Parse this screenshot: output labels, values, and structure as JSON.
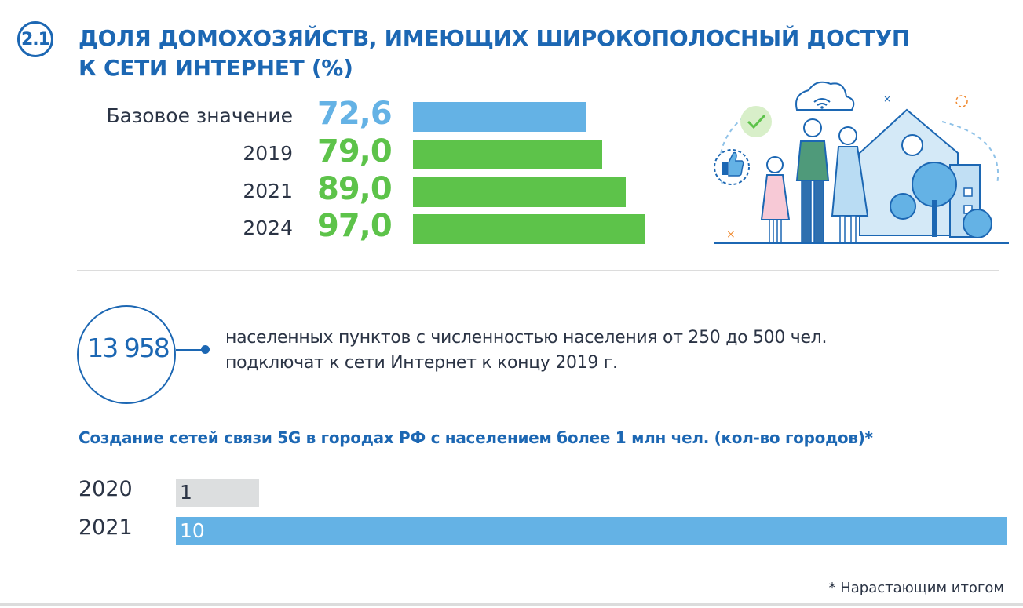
{
  "header": {
    "badge": "2.1",
    "title_line1": "ДОЛЯ ДОМОХОЗЯЙСТВ, ИМЕЮЩИХ ШИРОКОПОЛОСНЫЙ ДОСТУП",
    "title_line2": "К СЕТИ ИНТЕРНЕТ (%)"
  },
  "colors": {
    "brand_blue": "#1c67b3",
    "base_bar": "#64b2e5",
    "target_bar": "#5dc34a",
    "gray_bar": "#dcdedf"
  },
  "chart_data": [
    {
      "type": "bar",
      "orientation": "horizontal",
      "title": "ДОЛЯ ДОМОХОЗЯЙСТВ, ИМЕЮЩИХ ШИРОКОПОЛОСНЫЙ ДОСТУП К СЕТИ ИНТЕРНЕТ (%)",
      "categories": [
        "Базовое значение",
        "2019",
        "2021",
        "2024"
      ],
      "values": [
        72.6,
        79.0,
        89.0,
        97.0
      ],
      "value_labels": [
        "72,6",
        "79,0",
        "89,0",
        "97,0"
      ],
      "xlim": [
        0,
        100
      ],
      "grid": false
    },
    {
      "type": "bar",
      "orientation": "horizontal",
      "title": "Создание сетей связи 5G в городах РФ с населением более 1 млн чел. (кол-во городов)*",
      "categories": [
        "2020",
        "2021"
      ],
      "values": [
        1,
        10
      ],
      "value_labels": [
        "1",
        "10"
      ],
      "xlim": [
        0,
        10
      ],
      "grid": false
    }
  ],
  "stat": {
    "number": "13 958",
    "line1": "населенных пунктов с численностью населения от 250 до 500 чел.",
    "line2": "подключат к сети Интернет к концу 2019 г."
  },
  "footnote": "* Нарастающим итогом",
  "illustration": {
    "icons": [
      "cloud-wifi-icon",
      "checkmark-icon",
      "thumbs-up-icon",
      "house-icon",
      "tree-icon",
      "family-icon"
    ]
  }
}
